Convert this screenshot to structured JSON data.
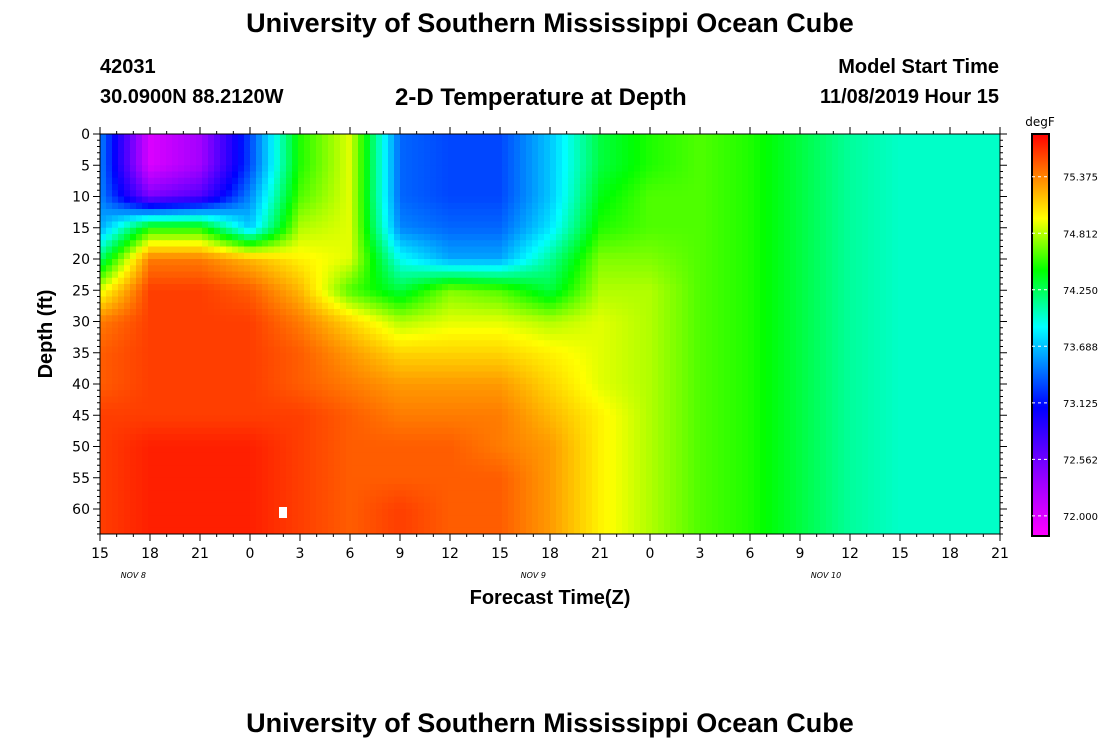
{
  "header": {
    "title": "University of Southern Mississippi Ocean Cube",
    "station_id": "42031",
    "coords": "30.0900N 88.2120W",
    "plot_title": "2-D Temperature at Depth",
    "model_start_label": "Model Start Time",
    "model_start_value": "11/08/2019 Hour 15"
  },
  "footer": {
    "title": "University of Southern Mississippi Ocean Cube"
  },
  "colors": {
    "colormap": [
      "#ff00ff",
      "#9900ff",
      "#0000ff",
      "#00ffff",
      "#00ff00",
      "#ffff00",
      "#ff8800",
      "#ff0000"
    ]
  },
  "chart_data": {
    "type": "heatmap",
    "xlabel": "Forecast Time(Z)",
    "ylabel": "Depth (ft)",
    "x_tick_labels": [
      "15",
      "18",
      "21",
      "0",
      "3",
      "6",
      "9",
      "12",
      "15",
      "18",
      "21",
      "0",
      "3",
      "6",
      "9",
      "12",
      "15",
      "18",
      "21"
    ],
    "date_labels": [
      "NOV 8",
      "NOV 9",
      "NOV 10"
    ],
    "y_ticks": [
      0,
      5,
      10,
      15,
      20,
      25,
      30,
      35,
      40,
      45,
      50,
      55,
      60
    ],
    "ylim": [
      0,
      64
    ],
    "y_reversed": true,
    "colorbar": {
      "unit": "degF",
      "range": [
        71.8,
        75.8
      ],
      "ticks": [
        "72.000",
        "72.562",
        "73.125",
        "73.688",
        "74.250",
        "74.812",
        "75.375"
      ]
    },
    "x_hours": [
      0,
      3,
      6,
      9,
      12,
      15,
      18,
      21,
      24,
      27,
      30,
      33,
      36,
      39,
      42,
      45,
      48,
      51,
      54
    ],
    "depths": [
      0,
      5,
      10,
      15,
      20,
      25,
      30,
      35,
      40,
      45,
      50,
      55,
      60,
      64
    ],
    "temperature": [
      [
        73.5,
        72.0,
        72.3,
        73.3,
        74.5,
        74.9,
        73.4,
        73.3,
        73.3,
        73.7,
        74.3,
        74.5,
        74.6,
        74.5,
        74.3,
        74.1,
        74.0,
        74.0,
        74.0
      ],
      [
        73.5,
        72.0,
        72.3,
        73.3,
        74.5,
        74.9,
        73.4,
        73.3,
        73.3,
        73.7,
        74.3,
        74.5,
        74.6,
        74.5,
        74.3,
        74.1,
        74.0,
        74.0,
        74.0
      ],
      [
        73.5,
        72.5,
        72.7,
        73.5,
        74.6,
        74.9,
        73.4,
        73.3,
        73.3,
        73.7,
        74.4,
        74.6,
        74.6,
        74.5,
        74.3,
        74.1,
        74.0,
        74.0,
        74.0
      ],
      [
        73.6,
        74.5,
        74.5,
        73.7,
        74.8,
        74.9,
        73.5,
        73.4,
        73.4,
        73.8,
        74.5,
        74.6,
        74.6,
        74.5,
        74.3,
        74.1,
        74.0,
        74.0,
        74.0
      ],
      [
        74.2,
        75.4,
        75.4,
        75.2,
        75.0,
        74.9,
        73.9,
        73.6,
        73.6,
        74.1,
        74.7,
        74.7,
        74.6,
        74.5,
        74.3,
        74.1,
        74.0,
        74.0,
        74.0
      ],
      [
        74.9,
        75.6,
        75.6,
        75.5,
        75.2,
        74.6,
        74.3,
        74.7,
        74.6,
        74.3,
        74.8,
        74.8,
        74.6,
        74.5,
        74.3,
        74.1,
        74.0,
        74.0,
        74.0
      ],
      [
        75.4,
        75.6,
        75.6,
        75.6,
        75.4,
        75.1,
        74.8,
        74.9,
        74.9,
        74.8,
        74.9,
        74.8,
        74.6,
        74.5,
        74.3,
        74.1,
        74.0,
        74.0,
        74.0
      ],
      [
        75.5,
        75.6,
        75.6,
        75.6,
        75.5,
        75.3,
        75.1,
        75.1,
        75.1,
        75.0,
        74.9,
        74.8,
        74.6,
        74.5,
        74.3,
        74.1,
        74.0,
        74.0,
        74.0
      ],
      [
        75.5,
        75.6,
        75.6,
        75.6,
        75.5,
        75.4,
        75.3,
        75.3,
        75.3,
        75.1,
        74.9,
        74.8,
        74.6,
        74.5,
        74.3,
        74.1,
        74.0,
        74.0,
        74.0
      ],
      [
        75.6,
        75.6,
        75.6,
        75.6,
        75.6,
        75.5,
        75.4,
        75.4,
        75.4,
        75.2,
        75.0,
        74.8,
        74.6,
        74.5,
        74.3,
        74.1,
        74.0,
        74.0,
        74.0
      ],
      [
        75.6,
        75.7,
        75.7,
        75.7,
        75.6,
        75.5,
        75.5,
        75.5,
        75.4,
        75.3,
        75.0,
        74.8,
        74.6,
        74.5,
        74.3,
        74.1,
        74.0,
        74.0,
        74.0
      ],
      [
        75.6,
        75.7,
        75.7,
        75.7,
        75.6,
        75.5,
        75.5,
        75.5,
        75.5,
        75.3,
        75.0,
        74.8,
        74.6,
        74.5,
        74.3,
        74.1,
        74.0,
        74.0,
        74.0
      ],
      [
        75.6,
        75.7,
        75.7,
        75.7,
        75.6,
        75.5,
        75.6,
        75.5,
        75.5,
        75.3,
        75.0,
        74.8,
        74.6,
        74.5,
        74.3,
        74.1,
        74.0,
        74.0,
        74.0
      ],
      [
        75.6,
        75.7,
        75.7,
        75.7,
        75.6,
        75.5,
        75.6,
        75.5,
        75.5,
        75.3,
        75.0,
        74.8,
        74.6,
        74.5,
        74.3,
        74.1,
        74.0,
        74.0,
        74.0
      ]
    ]
  }
}
